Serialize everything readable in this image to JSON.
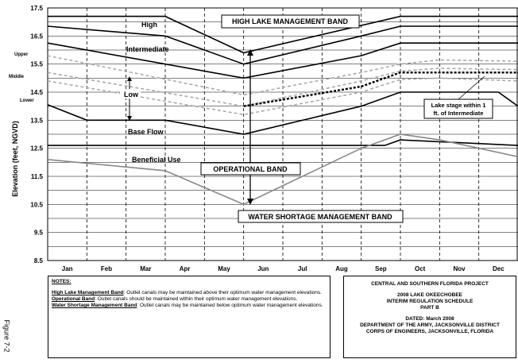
{
  "chart_data": {
    "type": "line",
    "ylabel": "Elevation (feet, NGVD)",
    "ylim": [
      8.5,
      17.5
    ],
    "yticks": [
      "17.5",
      "16.5",
      "15.5",
      "14.5",
      "13.5",
      "12.5",
      "11.5",
      "10.5",
      "9.5",
      "8.5"
    ],
    "months": [
      "Jan",
      "Feb",
      "Mar",
      "Apr",
      "May",
      "Jun",
      "Jul",
      "Aug",
      "Sep",
      "Oct",
      "Nov",
      "Dec"
    ],
    "series": [
      {
        "name": "High",
        "points": [
          [
            0,
            17.2
          ],
          [
            3,
            17.2
          ],
          [
            5,
            15.9
          ],
          [
            9,
            17.2
          ],
          [
            12,
            17.2
          ]
        ]
      },
      {
        "name": "",
        "points": [
          [
            0,
            16.85
          ],
          [
            3,
            16.5
          ],
          [
            5,
            15.5
          ],
          [
            8,
            16.5
          ],
          [
            9,
            16.85
          ],
          [
            12,
            16.85
          ]
        ]
      },
      {
        "name": "Intermediate",
        "points": [
          [
            0,
            16.25
          ],
          [
            5,
            15.0
          ],
          [
            8,
            15.8
          ],
          [
            9,
            16.25
          ],
          [
            12,
            16.25
          ]
        ]
      },
      {
        "name": "",
        "points": [
          [
            0,
            14.05
          ],
          [
            1,
            13.5
          ],
          [
            3,
            13.5
          ],
          [
            5,
            13.0
          ],
          [
            8,
            14.0
          ],
          [
            9,
            14.5
          ],
          [
            11.5,
            14.5
          ],
          [
            12,
            14.0
          ]
        ]
      },
      {
        "name": "Base Flow",
        "points": [
          [
            0,
            12.6
          ],
          [
            8.6,
            12.6
          ],
          [
            9,
            12.8
          ],
          [
            12,
            12.6
          ]
        ]
      },
      {
        "name": "Beneficial Use",
        "points": [
          [
            0,
            12.1
          ],
          [
            3,
            11.7
          ],
          [
            5,
            10.5
          ],
          [
            8,
            12.5
          ],
          [
            9,
            13.0
          ],
          [
            10,
            12.8
          ],
          [
            12,
            12.2
          ]
        ]
      },
      {
        "name": "Upper",
        "style": "gray-dashed",
        "points": [
          [
            0,
            15.8
          ],
          [
            5,
            14.4
          ],
          [
            8,
            15.2
          ],
          [
            9,
            15.5
          ],
          [
            10,
            15.65
          ],
          [
            12,
            15.6
          ]
        ]
      },
      {
        "name": "Middle",
        "style": "gray-dashed",
        "points": [
          [
            0,
            15.2
          ],
          [
            5,
            14.0
          ],
          [
            8,
            14.9
          ],
          [
            9,
            15.25
          ],
          [
            10,
            15.35
          ],
          [
            12,
            15.3
          ]
        ]
      },
      {
        "name": "Lower",
        "style": "gray-dashed",
        "points": [
          [
            0,
            14.9
          ],
          [
            5,
            13.7
          ],
          [
            8,
            14.5
          ],
          [
            9,
            14.95
          ],
          [
            10,
            15.0
          ],
          [
            12,
            14.9
          ]
        ]
      },
      {
        "name": "Lake stage within 1 ft. of Intermediate",
        "style": "black-dashed",
        "points": [
          [
            5,
            14.0
          ],
          [
            8,
            14.7
          ],
          [
            9,
            15.2
          ],
          [
            12,
            15.2
          ]
        ]
      }
    ]
  },
  "labels": {
    "high": "High",
    "intermediate": "Intermediate",
    "low": "Low",
    "base_flow": "Base Flow",
    "beneficial_use": "Beneficial Use",
    "upper": "Upper",
    "middle": "Middle",
    "lower": "Lower",
    "high_band": "HIGH LAKE MANAGEMENT BAND",
    "operational_band": "OPERATIONAL BAND",
    "water_shortage_band": "WATER SHORTAGE MANAGEMENT BAND",
    "lake_stage_1": "Lake stage within 1",
    "lake_stage_2": "ft. of Intermediate"
  },
  "notes": {
    "heading": "NOTES:",
    "high_key": "High Lake Management Band",
    "high_text": ": Outlet canals may be maintained above their optimum water management elevations.",
    "op_key": "Operational Band",
    "op_text": ": Outlet canals should be maintained within their optimum water management elevations.",
    "ws_key": "Water Shortage Management Band",
    "ws_text": ": Outlet canals may be maintained below optimum water management elevations."
  },
  "title_block": {
    "line1": "CENTRAL AND SOUTHERN FLORIDA PROJECT",
    "line2": "2008 LAKE OKEECHOBEE",
    "line3": "INTERIM REGULATION SCHEDULE",
    "line4": "PART B",
    "line5": "DATED: March 2008",
    "line6": "DEPARTMENT OF THE ARMY, JACKSONVILLE DISTRICT",
    "line7": "CORPS OF ENGINEERS, JACKSONVILLE, FLORIDA"
  },
  "figure_label": "Figure 7-2"
}
